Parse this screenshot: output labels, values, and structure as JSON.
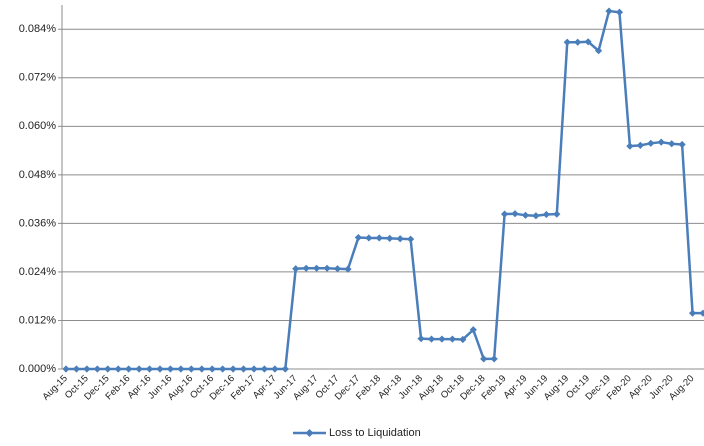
{
  "chart_data": {
    "type": "line",
    "categories": [
      "Aug-15",
      null,
      "Oct-15",
      null,
      "Dec-15",
      null,
      "Feb-16",
      null,
      "Apr-16",
      null,
      "Jun-16",
      null,
      "Aug-16",
      null,
      "Oct-16",
      null,
      "Dec-16",
      null,
      "Feb-17",
      null,
      "Apr-17",
      null,
      "Jun-17",
      null,
      "Aug-17",
      null,
      "Oct-17",
      null,
      "Dec-17",
      null,
      "Feb-18",
      null,
      "Apr-18",
      null,
      "Jun-18",
      null,
      "Aug-18",
      null,
      "Oct-18",
      null,
      "Dec-18",
      null,
      "Feb-19",
      null,
      "Apr-19",
      null,
      "Jun-19",
      null,
      "Aug-19",
      null,
      "Oct-19",
      null,
      "Dec-19",
      null,
      "Feb-20",
      null,
      "Apr-20",
      null,
      "Jun-20",
      null,
      "Aug-20",
      null
    ],
    "series": [
      {
        "name": "Loss to Liquidation",
        "color": "#4a7ebb",
        "values": [
          0,
          0,
          0,
          0,
          0,
          0,
          0,
          0,
          0,
          0,
          0,
          0,
          0,
          0,
          0,
          0,
          0,
          0,
          0,
          0,
          0,
          0,
          0.0248,
          0.0249,
          0.0249,
          0.0249,
          0.0248,
          0.0247,
          0.0325,
          0.0324,
          0.0324,
          0.0323,
          0.0322,
          0.0321,
          0.0075,
          0.0074,
          0.0074,
          0.0074,
          0.0073,
          0.0097,
          0.0025,
          0.0025,
          0.0383,
          0.0384,
          0.038,
          0.0379,
          0.0382,
          0.0383,
          0.0808,
          0.0808,
          0.0809,
          0.0787,
          0.0885,
          0.0882,
          0.0551,
          0.0553,
          0.0558,
          0.0561,
          0.0557,
          0.0555,
          0.0138,
          0.0138
        ]
      }
    ],
    "ylim": [
      0,
      0.09
    ],
    "yticks": [
      {
        "value": 0,
        "label": "0.000%"
      },
      {
        "value": 0.012,
        "label": "0.012%"
      },
      {
        "value": 0.024,
        "label": "0.024%"
      },
      {
        "value": 0.036,
        "label": "0.036%"
      },
      {
        "value": 0.048,
        "label": "0.048%"
      },
      {
        "value": 0.06,
        "label": "0.060%"
      },
      {
        "value": 0.072,
        "label": "0.072%"
      },
      {
        "value": 0.084,
        "label": "0.084%"
      }
    ],
    "grid": true,
    "legend": "bottom"
  }
}
